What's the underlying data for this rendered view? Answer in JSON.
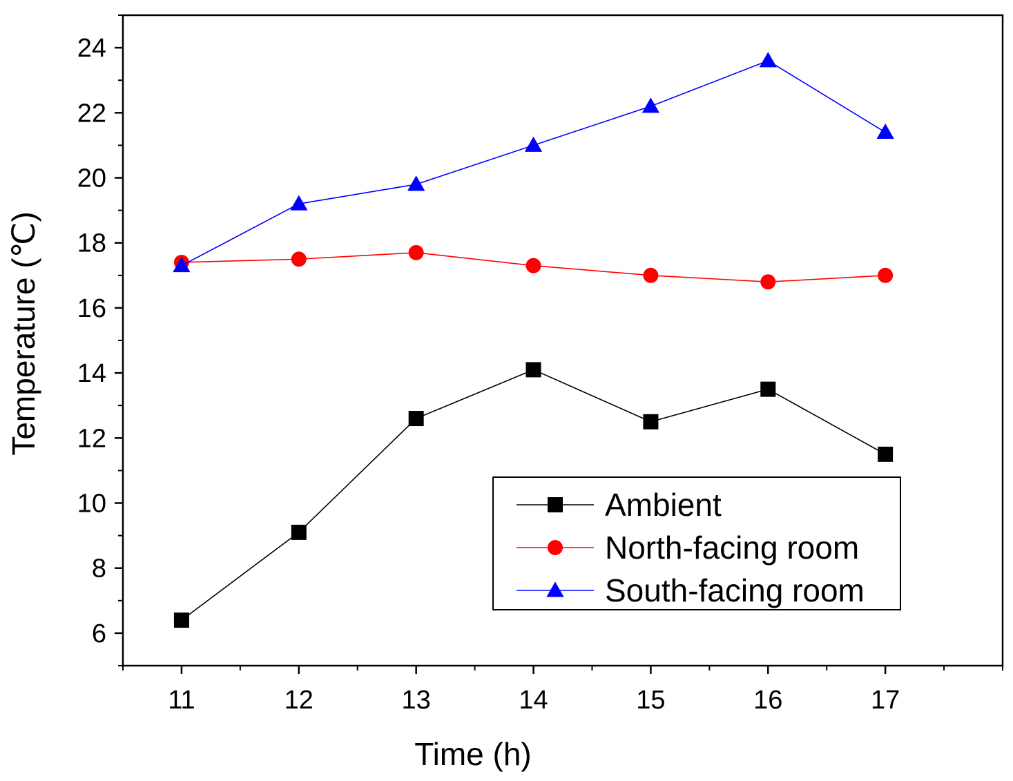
{
  "chart_data": {
    "type": "line",
    "title": "",
    "xlabel": "Time (h)",
    "ylabel": "Temperature (℃)",
    "x": [
      11,
      12,
      13,
      14,
      15,
      16,
      17
    ],
    "xlim": [
      10.5,
      18
    ],
    "ylim": [
      5,
      25
    ],
    "xticks": [
      "11",
      "12",
      "13",
      "14",
      "15",
      "16",
      "17"
    ],
    "yticks": [
      "6",
      "8",
      "10",
      "12",
      "14",
      "16",
      "18",
      "20",
      "22",
      "24"
    ],
    "grid": false,
    "legend_position": "bottom-right",
    "series": [
      {
        "name": "Ambient",
        "color": "#000000",
        "marker": "square",
        "values": [
          6.4,
          9.1,
          12.6,
          14.1,
          12.5,
          13.5,
          11.5
        ]
      },
      {
        "name": "North-facing room",
        "color": "#ff0000",
        "marker": "circle",
        "values": [
          17.4,
          17.5,
          17.7,
          17.3,
          17.0,
          16.8,
          17.0
        ]
      },
      {
        "name": "South-facing room",
        "color": "#0000ff",
        "marker": "triangle",
        "values": [
          17.3,
          19.2,
          19.8,
          21.0,
          22.2,
          23.6,
          21.4
        ]
      }
    ]
  }
}
